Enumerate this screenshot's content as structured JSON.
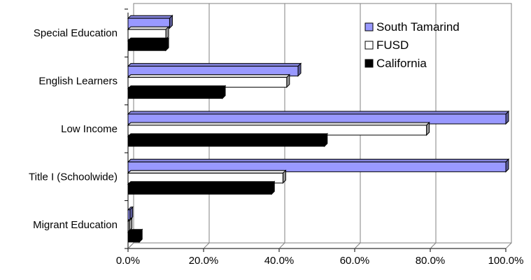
{
  "chart_data": {
    "type": "bar",
    "orientation": "horizontal",
    "style": "3d-clustered",
    "categories": [
      "Special Education",
      "English Learners",
      "Low Income",
      "Title I (Schoolwide)",
      "Migrant Education"
    ],
    "series": [
      {
        "name": "South Tamarind",
        "values": [
          11,
          45,
          100,
          100,
          0.5
        ],
        "color": "#9999ff"
      },
      {
        "name": "FUSD",
        "values": [
          10,
          42,
          79,
          41,
          0.3
        ],
        "color": "#ffffff"
      },
      {
        "name": "California",
        "values": [
          10,
          25,
          52,
          38,
          3
        ],
        "color": "#000000"
      }
    ],
    "x_ticks": [
      "0.0%",
      "20.0%",
      "40.0%",
      "60.0%",
      "80.0%",
      "100.0%"
    ],
    "xlim": [
      0,
      100
    ],
    "title": "",
    "xlabel": "",
    "ylabel": "",
    "grid": "vertical",
    "legend_position": "top-right"
  }
}
